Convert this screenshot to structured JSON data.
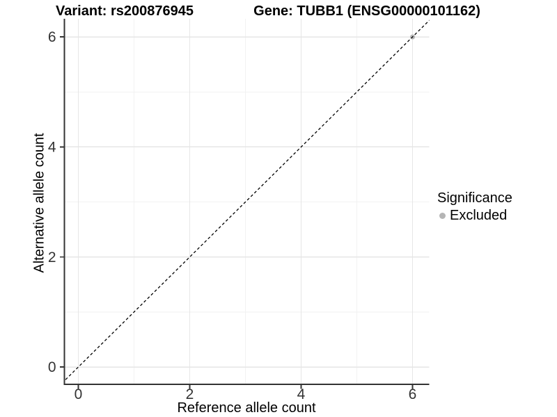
{
  "titles": {
    "variant": "Variant: rs200876945",
    "gene": "Gene: TUBB1 (ENSG00000101162)"
  },
  "axes": {
    "x_label": "Reference allele count",
    "y_label": "Alternative allele count"
  },
  "legend": {
    "title": "Significance",
    "items": [
      {
        "label": "Excluded",
        "color": "#b5b5b5"
      }
    ]
  },
  "colors": {
    "background": "#ffffff",
    "grid_major": "#e6e6e6",
    "grid_minor": "#f2f2f2",
    "axis_line": "#333333",
    "tick_label": "#333333",
    "reference_line": "#000000",
    "point_excluded": "#b5b5b5"
  },
  "chart_data": {
    "type": "scatter",
    "title_left": "Variant: rs200876945",
    "title_right": "Gene: TUBB1 (ENSG00000101162)",
    "xlabel": "Reference allele count",
    "ylabel": "Alternative allele count",
    "xlim": [
      -0.25,
      6.3
    ],
    "ylim": [
      -0.315,
      6.33
    ],
    "x_ticks": [
      0,
      2,
      4,
      6
    ],
    "y_ticks": [
      0,
      2,
      4,
      6
    ],
    "x_minor_ticks": [
      1,
      3,
      5
    ],
    "y_minor_ticks": [
      1,
      3,
      5
    ],
    "grid": "major+minor",
    "legend_position": "right",
    "series": [
      {
        "name": "Excluded",
        "color": "#b5b5b5",
        "points": [
          {
            "x": 6,
            "y": 6
          }
        ]
      }
    ],
    "reference_line": {
      "kind": "identity",
      "slope": 1,
      "intercept": 0,
      "style": "dashed",
      "color": "#000000"
    }
  }
}
